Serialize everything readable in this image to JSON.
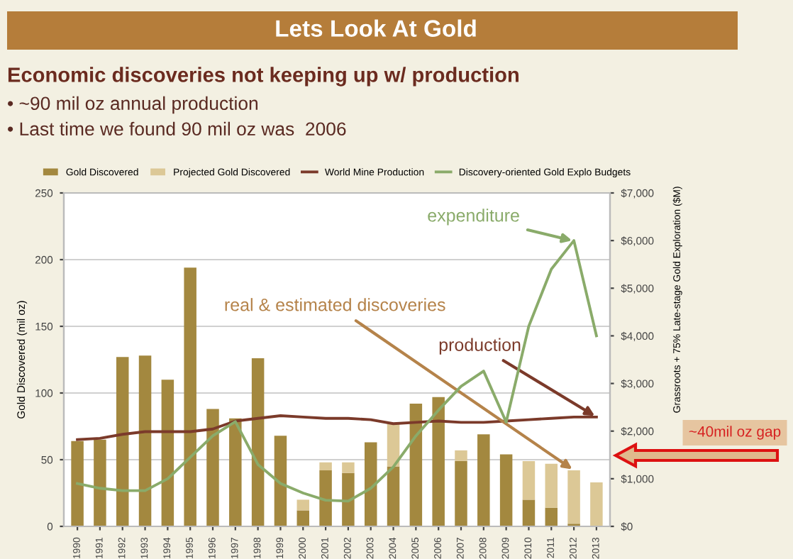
{
  "chart_data": {
    "type": "bar",
    "stacked": true,
    "title": "Lets Look At Gold",
    "subtitle": "Economic discoveries not keeping up w/ production",
    "ylabel": "Gold Discovered (mil oz)",
    "y2label": "Grassroots + 75% Late-stage Gold Exploration ($M)",
    "categories": [
      "1990",
      "1991",
      "1992",
      "1993",
      "1994",
      "1995",
      "1996",
      "1997",
      "1998",
      "1999",
      "2000",
      "2001",
      "2002",
      "2003",
      "2004",
      "2005",
      "2006",
      "2007",
      "2008",
      "2009",
      "2010",
      "2011",
      "2012",
      "2013"
    ],
    "series": [
      {
        "name": "Gold Discovered",
        "color": "#a3883f",
        "values": [
          64,
          65,
          127,
          128,
          110,
          194,
          88,
          81,
          126,
          68,
          12,
          42,
          40,
          63,
          45,
          92,
          97,
          49,
          69,
          54,
          20,
          14,
          2,
          0
        ]
      },
      {
        "name": "Projected Gold Discovered",
        "color": "#dcc896",
        "values": [
          0,
          0,
          0,
          0,
          0,
          0,
          0,
          0,
          0,
          0,
          8,
          6,
          8,
          0,
          32,
          0,
          0,
          8,
          0,
          0,
          29,
          33,
          40,
          33
        ]
      },
      {
        "name": "World Mine Production",
        "type": "line",
        "color": "#7b3a2a",
        "values": [
          65,
          66,
          69,
          71,
          71,
          71,
          73,
          79,
          81,
          83,
          82,
          81,
          81,
          80,
          77,
          78,
          79,
          78,
          78,
          79,
          80,
          81,
          82,
          82
        ]
      },
      {
        "name": "Discovery-oriented Gold Explo Budgets",
        "type": "line",
        "axis": "y2",
        "color": "#8aab6a",
        "values": [
          900,
          800,
          750,
          750,
          1000,
          1450,
          1900,
          2200,
          1300,
          900,
          700,
          550,
          530,
          800,
          1250,
          1900,
          2440,
          2940,
          3260,
          2190,
          4200,
          5400,
          6000,
          4000
        ]
      }
    ],
    "ylim": [
      0,
      250
    ],
    "yticks": [
      0,
      50,
      100,
      150,
      200,
      250
    ],
    "y2lim": [
      0,
      7000
    ],
    "y2ticks": [
      {
        "value": 0,
        "label": "$0"
      },
      {
        "value": 1000,
        "label": "$1,000"
      },
      {
        "value": 2000,
        "label": "$2,000"
      },
      {
        "value": 3000,
        "label": "$3,000"
      },
      {
        "value": 4000,
        "label": "$4,000"
      },
      {
        "value": 5000,
        "label": "$5,000"
      },
      {
        "value": 6000,
        "label": "$6,000"
      },
      {
        "value": 7000,
        "label": "$7,000"
      }
    ],
    "grid": "y",
    "legend": "top",
    "annotations": [
      "• ~90 mil oz annual production",
      "• Last time we found 90 mil oz was  2006",
      {
        "text": "expenditure",
        "x": "2012",
        "y": 214
      },
      {
        "text": "real & estimated discoveries",
        "x": "2012",
        "y": 42
      },
      {
        "text": "production",
        "x": "2013",
        "y": 82
      },
      "~40mil oz gap"
    ]
  }
}
